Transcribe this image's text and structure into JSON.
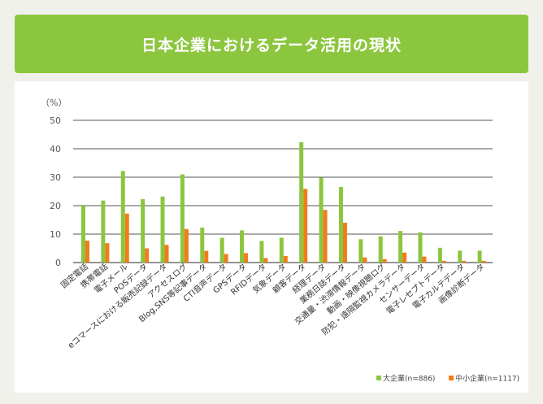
{
  "header": {
    "title": "日本企業におけるデータ活用の現状"
  },
  "chart_data": {
    "type": "bar",
    "y_unit": "（%）",
    "ylim": [
      0,
      50
    ],
    "y_ticks": [
      0,
      10,
      20,
      30,
      40,
      50
    ],
    "grid": true,
    "legend_position": "bottom-right",
    "categories": [
      "固定電話",
      "携帯電話",
      "電子メール",
      "POSデータ",
      "eコマースにおける販売記録データ",
      "アクセスログ",
      "Blog,SNS等記事データ",
      "CTI音声データ",
      "GPSデータ",
      "RFIDデータ",
      "気象データ",
      "顧客データ",
      "経理データ",
      "業務日誌データ",
      "交通量・渋滞情報データ",
      "動画・映像視聴ログ",
      "防犯・遠隔監視カメラデータ",
      "センサーデータ",
      "電子レセプトデータ",
      "電子カルテデータ",
      "画像診断データ"
    ],
    "series": [
      {
        "name": "大企業(n=886)",
        "color": "#8cc63f",
        "values": [
          20.3,
          21.8,
          32.2,
          22.3,
          23.2,
          31.0,
          12.3,
          8.7,
          11.3,
          7.6,
          8.7,
          42.3,
          29.9,
          26.6,
          8.2,
          9.2,
          11.1,
          10.6,
          5.2,
          4.2,
          4.2
        ]
      },
      {
        "name": "中小企業(n=1117)",
        "color": "#f07c1b",
        "values": [
          7.7,
          6.8,
          17.2,
          5.0,
          6.2,
          11.8,
          4.1,
          3.0,
          3.3,
          1.6,
          2.3,
          25.9,
          18.5,
          14.0,
          1.8,
          1.2,
          3.5,
          2.1,
          0.6,
          0.6,
          0.6
        ]
      }
    ]
  }
}
